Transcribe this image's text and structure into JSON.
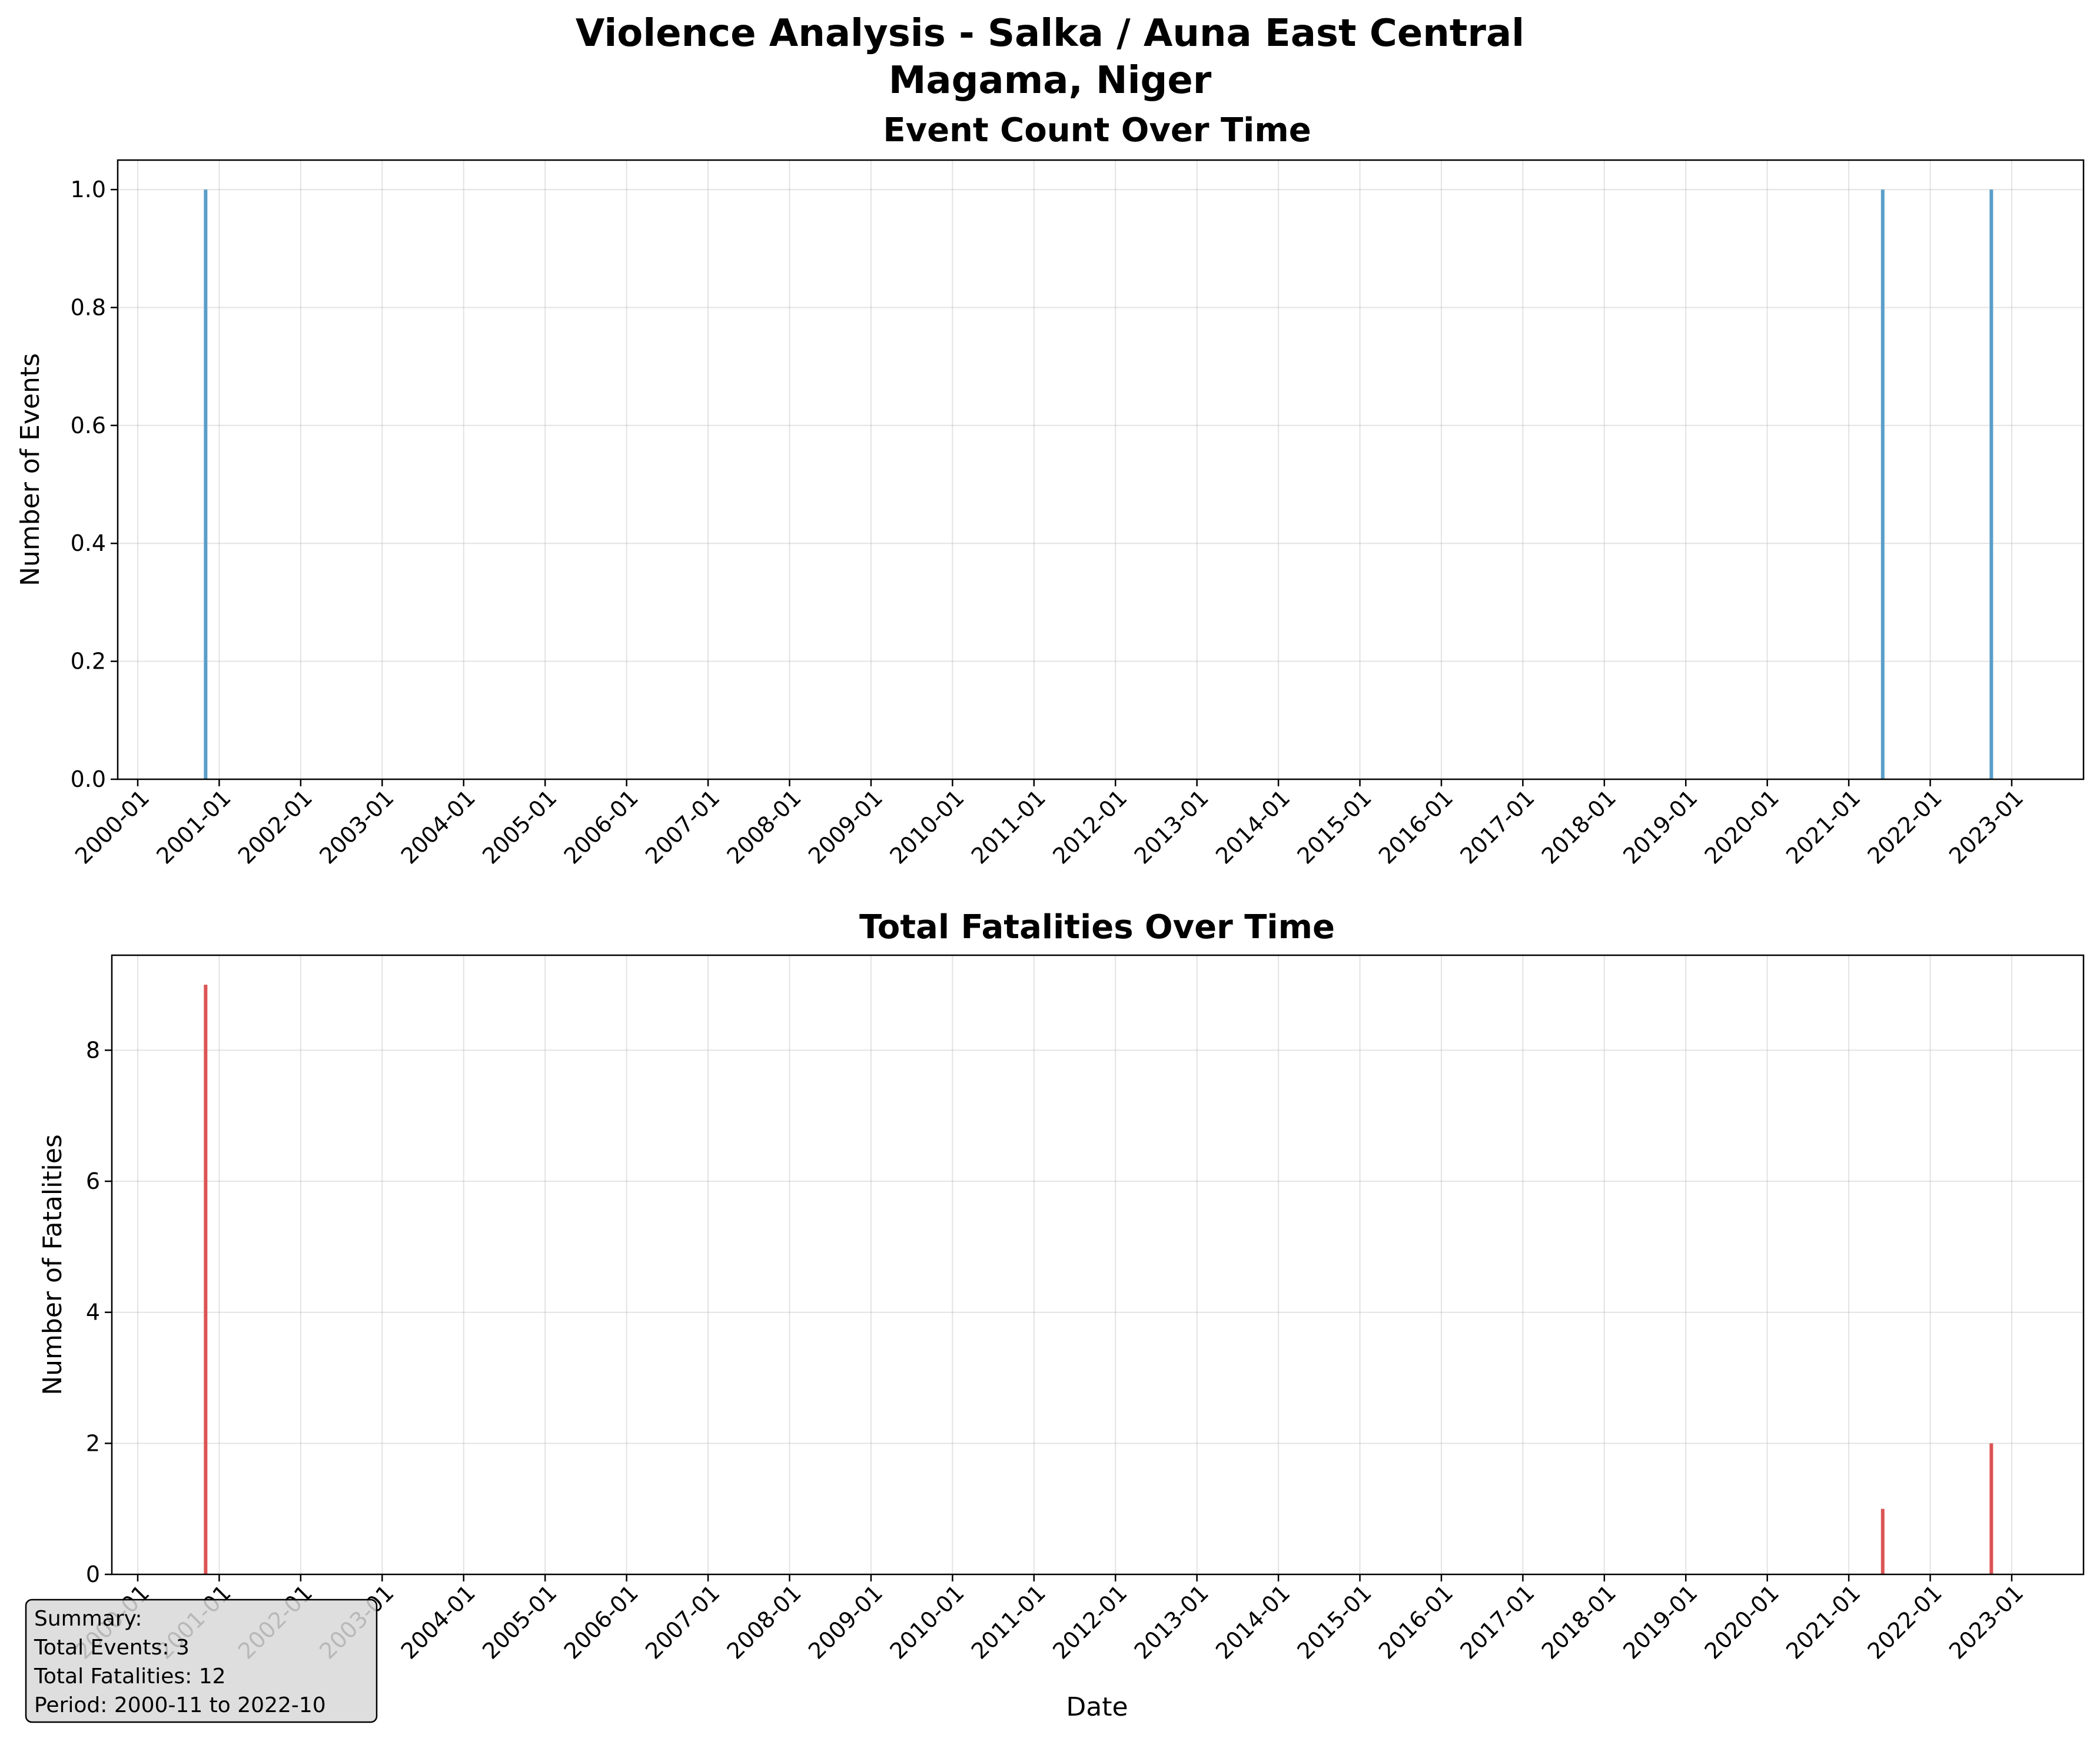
{
  "figure": {
    "title_line1": "Violence Analysis - Salka / Auna East Central",
    "title_line2": "Magama, Niger"
  },
  "chart_data": [
    {
      "type": "bar",
      "title": "Event Count Over Time",
      "xlabel": "",
      "ylabel": "Number of Events",
      "x_ticks": [
        "2000-01",
        "2001-01",
        "2002-01",
        "2003-01",
        "2004-01",
        "2005-01",
        "2006-01",
        "2007-01",
        "2008-01",
        "2009-01",
        "2010-01",
        "2011-01",
        "2012-01",
        "2013-01",
        "2014-01",
        "2015-01",
        "2016-01",
        "2017-01",
        "2018-01",
        "2019-01",
        "2020-01",
        "2021-01",
        "2022-01",
        "2023-01"
      ],
      "y_ticks": [
        "0.0",
        "0.2",
        "0.4",
        "0.6",
        "0.8",
        "1.0"
      ],
      "ylim": [
        0,
        1.05
      ],
      "xlim": [
        "1999-10",
        "2023-09"
      ],
      "grid": true,
      "color": "#5a9ec9",
      "x": [
        "2000-11",
        "2021-06",
        "2022-10"
      ],
      "values": [
        1,
        1,
        1
      ]
    },
    {
      "type": "bar",
      "title": "Total Fatalities Over Time",
      "xlabel": "Date",
      "ylabel": "Number of Fatalities",
      "x_ticks": [
        "2000-01",
        "2001-01",
        "2002-01",
        "2003-01",
        "2004-01",
        "2005-01",
        "2006-01",
        "2007-01",
        "2008-01",
        "2009-01",
        "2010-01",
        "2011-01",
        "2012-01",
        "2013-01",
        "2014-01",
        "2015-01",
        "2016-01",
        "2017-01",
        "2018-01",
        "2019-01",
        "2020-01",
        "2021-01",
        "2022-01",
        "2023-01"
      ],
      "y_ticks": [
        "0",
        "2",
        "4",
        "6",
        "8"
      ],
      "ylim": [
        0,
        9.45
      ],
      "xlim": [
        "1999-10",
        "2023-09"
      ],
      "grid": true,
      "color": "#dc5454",
      "x": [
        "2000-11",
        "2021-06",
        "2022-10"
      ],
      "values": [
        9,
        1,
        2
      ]
    }
  ],
  "summary": {
    "heading": "Summary:",
    "events": "Total Events: 3",
    "fatalities": "Total Fatalities: 12",
    "period": "Period: 2000-11 to 2022-10"
  }
}
